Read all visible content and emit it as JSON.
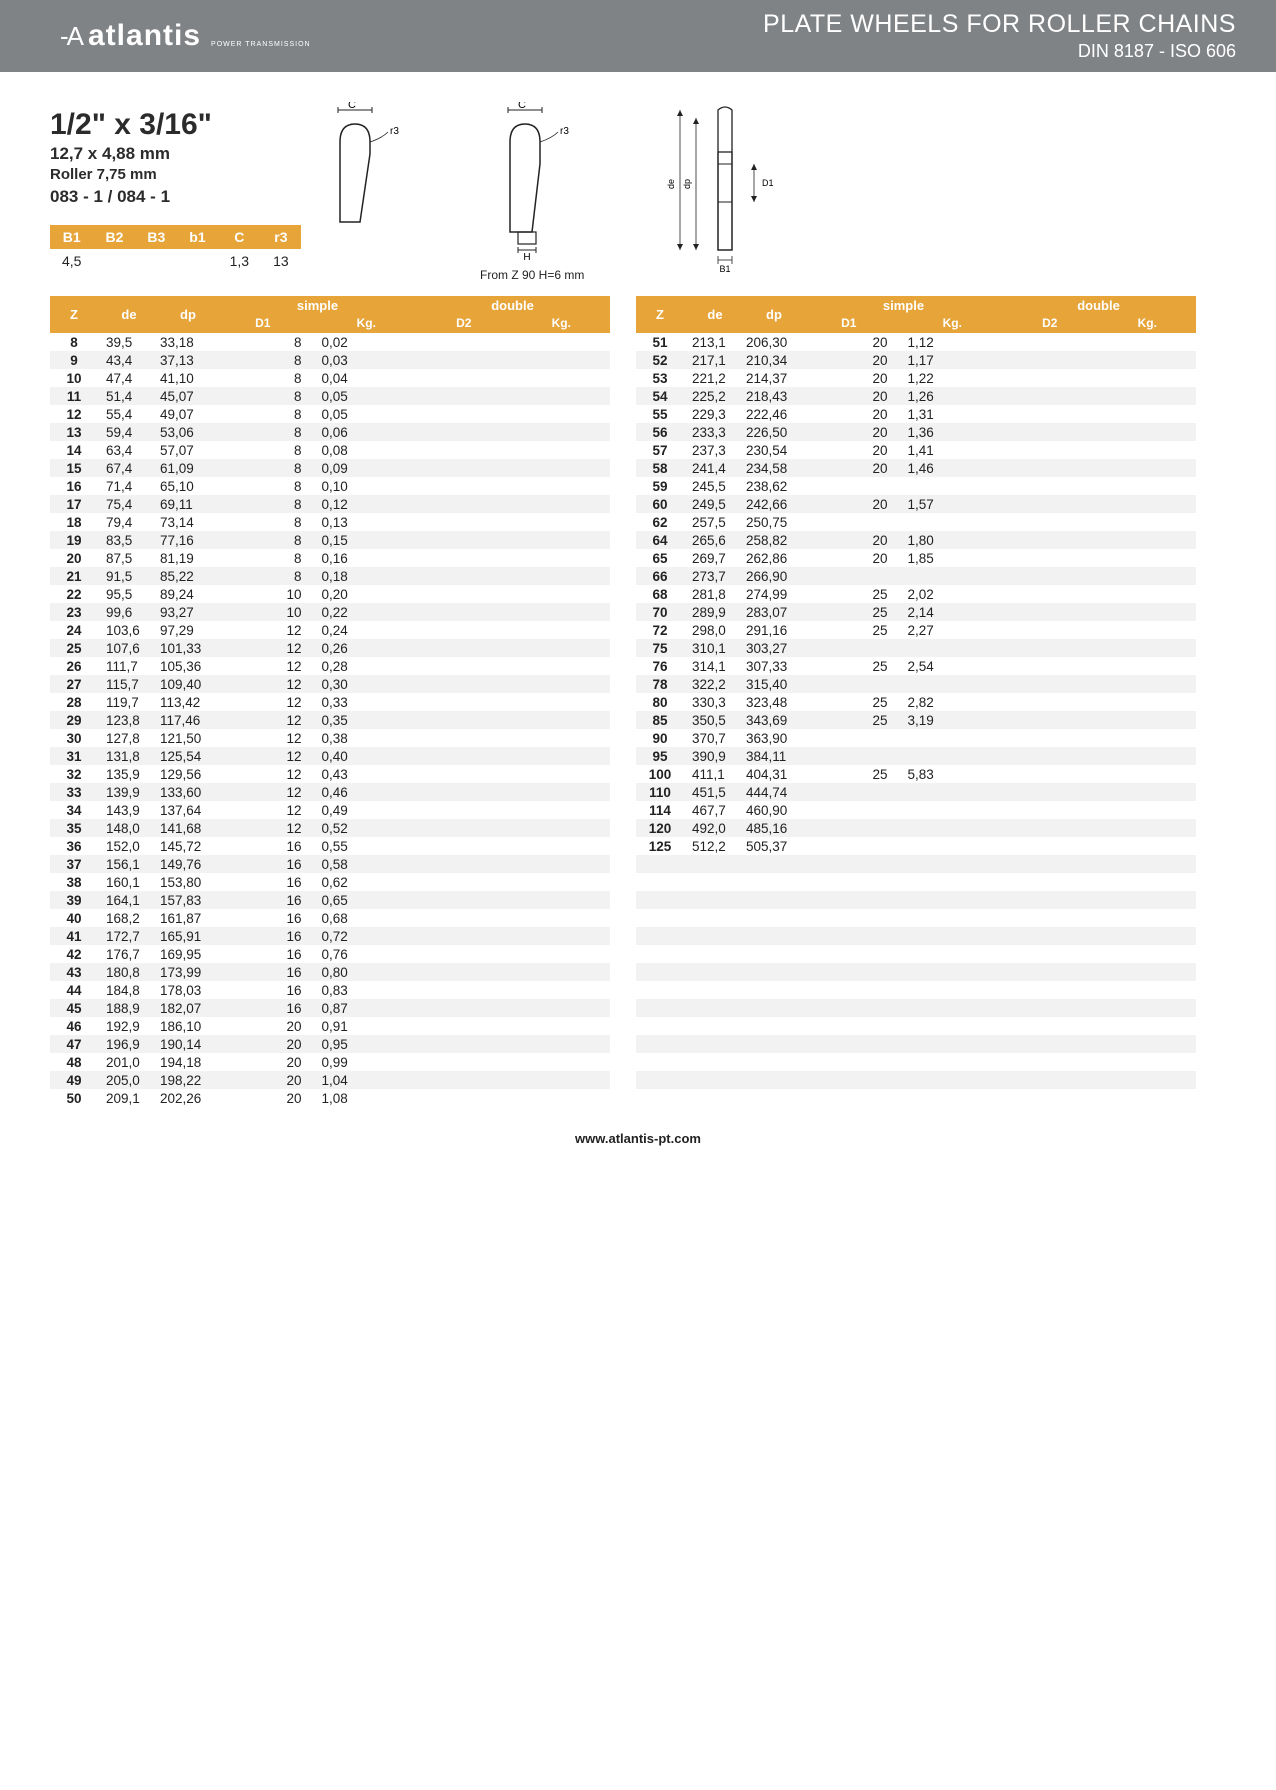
{
  "header": {
    "logo_symbol": "-A",
    "logo_text": "atlantis",
    "logo_sub": "POWER TRANSMISSION",
    "title": "PLATE WHEELS FOR ROLLER CHAINS",
    "subtitle": "DIN 8187 - ISO 606"
  },
  "spec": {
    "size": "1/2\" x 3/16\"",
    "mm": "12,7 x 4,88 mm",
    "roller": "Roller 7,75 mm",
    "code": "083 - 1 / 084 - 1"
  },
  "diagram_labels": {
    "c": "C",
    "r3": "r3",
    "h": "H",
    "de": "de",
    "dp": "dp",
    "d1": "D1",
    "b1": "B1"
  },
  "note": "From Z 90 H=6 mm",
  "params": {
    "headers": [
      "B1",
      "B2",
      "B3",
      "b1",
      "C",
      "r3"
    ],
    "values": [
      "4,5",
      "",
      "",
      "",
      "1,3",
      "13"
    ]
  },
  "table_headers": {
    "z": "Z",
    "de": "de",
    "dp": "dp",
    "simple": "simple",
    "double": "double",
    "d1": "D1",
    "kg": "Kg.",
    "d2": "D2",
    "kg2": "Kg."
  },
  "left": [
    {
      "z": "8",
      "de": "39,5",
      "dp": "33,18",
      "d1": "8",
      "kg": "0,02"
    },
    {
      "z": "9",
      "de": "43,4",
      "dp": "37,13",
      "d1": "8",
      "kg": "0,03"
    },
    {
      "z": "10",
      "de": "47,4",
      "dp": "41,10",
      "d1": "8",
      "kg": "0,04"
    },
    {
      "z": "11",
      "de": "51,4",
      "dp": "45,07",
      "d1": "8",
      "kg": "0,05"
    },
    {
      "z": "12",
      "de": "55,4",
      "dp": "49,07",
      "d1": "8",
      "kg": "0,05"
    },
    {
      "z": "13",
      "de": "59,4",
      "dp": "53,06",
      "d1": "8",
      "kg": "0,06"
    },
    {
      "z": "14",
      "de": "63,4",
      "dp": "57,07",
      "d1": "8",
      "kg": "0,08"
    },
    {
      "z": "15",
      "de": "67,4",
      "dp": "61,09",
      "d1": "8",
      "kg": "0,09"
    },
    {
      "z": "16",
      "de": "71,4",
      "dp": "65,10",
      "d1": "8",
      "kg": "0,10"
    },
    {
      "z": "17",
      "de": "75,4",
      "dp": "69,11",
      "d1": "8",
      "kg": "0,12"
    },
    {
      "z": "18",
      "de": "79,4",
      "dp": "73,14",
      "d1": "8",
      "kg": "0,13"
    },
    {
      "z": "19",
      "de": "83,5",
      "dp": "77,16",
      "d1": "8",
      "kg": "0,15"
    },
    {
      "z": "20",
      "de": "87,5",
      "dp": "81,19",
      "d1": "8",
      "kg": "0,16"
    },
    {
      "z": "21",
      "de": "91,5",
      "dp": "85,22",
      "d1": "8",
      "kg": "0,18"
    },
    {
      "z": "22",
      "de": "95,5",
      "dp": "89,24",
      "d1": "10",
      "kg": "0,20"
    },
    {
      "z": "23",
      "de": "99,6",
      "dp": "93,27",
      "d1": "10",
      "kg": "0,22"
    },
    {
      "z": "24",
      "de": "103,6",
      "dp": "97,29",
      "d1": "12",
      "kg": "0,24"
    },
    {
      "z": "25",
      "de": "107,6",
      "dp": "101,33",
      "d1": "12",
      "kg": "0,26"
    },
    {
      "z": "26",
      "de": "111,7",
      "dp": "105,36",
      "d1": "12",
      "kg": "0,28"
    },
    {
      "z": "27",
      "de": "115,7",
      "dp": "109,40",
      "d1": "12",
      "kg": "0,30"
    },
    {
      "z": "28",
      "de": "119,7",
      "dp": "113,42",
      "d1": "12",
      "kg": "0,33"
    },
    {
      "z": "29",
      "de": "123,8",
      "dp": "117,46",
      "d1": "12",
      "kg": "0,35"
    },
    {
      "z": "30",
      "de": "127,8",
      "dp": "121,50",
      "d1": "12",
      "kg": "0,38"
    },
    {
      "z": "31",
      "de": "131,8",
      "dp": "125,54",
      "d1": "12",
      "kg": "0,40"
    },
    {
      "z": "32",
      "de": "135,9",
      "dp": "129,56",
      "d1": "12",
      "kg": "0,43"
    },
    {
      "z": "33",
      "de": "139,9",
      "dp": "133,60",
      "d1": "12",
      "kg": "0,46"
    },
    {
      "z": "34",
      "de": "143,9",
      "dp": "137,64",
      "d1": "12",
      "kg": "0,49"
    },
    {
      "z": "35",
      "de": "148,0",
      "dp": "141,68",
      "d1": "12",
      "kg": "0,52"
    },
    {
      "z": "36",
      "de": "152,0",
      "dp": "145,72",
      "d1": "16",
      "kg": "0,55"
    },
    {
      "z": "37",
      "de": "156,1",
      "dp": "149,76",
      "d1": "16",
      "kg": "0,58"
    },
    {
      "z": "38",
      "de": "160,1",
      "dp": "153,80",
      "d1": "16",
      "kg": "0,62"
    },
    {
      "z": "39",
      "de": "164,1",
      "dp": "157,83",
      "d1": "16",
      "kg": "0,65"
    },
    {
      "z": "40",
      "de": "168,2",
      "dp": "161,87",
      "d1": "16",
      "kg": "0,68"
    },
    {
      "z": "41",
      "de": "172,7",
      "dp": "165,91",
      "d1": "16",
      "kg": "0,72"
    },
    {
      "z": "42",
      "de": "176,7",
      "dp": "169,95",
      "d1": "16",
      "kg": "0,76"
    },
    {
      "z": "43",
      "de": "180,8",
      "dp": "173,99",
      "d1": "16",
      "kg": "0,80"
    },
    {
      "z": "44",
      "de": "184,8",
      "dp": "178,03",
      "d1": "16",
      "kg": "0,83"
    },
    {
      "z": "45",
      "de": "188,9",
      "dp": "182,07",
      "d1": "16",
      "kg": "0,87"
    },
    {
      "z": "46",
      "de": "192,9",
      "dp": "186,10",
      "d1": "20",
      "kg": "0,91"
    },
    {
      "z": "47",
      "de": "196,9",
      "dp": "190,14",
      "d1": "20",
      "kg": "0,95"
    },
    {
      "z": "48",
      "de": "201,0",
      "dp": "194,18",
      "d1": "20",
      "kg": "0,99"
    },
    {
      "z": "49",
      "de": "205,0",
      "dp": "198,22",
      "d1": "20",
      "kg": "1,04"
    },
    {
      "z": "50",
      "de": "209,1",
      "dp": "202,26",
      "d1": "20",
      "kg": "1,08"
    }
  ],
  "right": [
    {
      "z": "51",
      "de": "213,1",
      "dp": "206,30",
      "d1": "20",
      "kg": "1,12"
    },
    {
      "z": "52",
      "de": "217,1",
      "dp": "210,34",
      "d1": "20",
      "kg": "1,17"
    },
    {
      "z": "53",
      "de": "221,2",
      "dp": "214,37",
      "d1": "20",
      "kg": "1,22"
    },
    {
      "z": "54",
      "de": "225,2",
      "dp": "218,43",
      "d1": "20",
      "kg": "1,26"
    },
    {
      "z": "55",
      "de": "229,3",
      "dp": "222,46",
      "d1": "20",
      "kg": "1,31"
    },
    {
      "z": "56",
      "de": "233,3",
      "dp": "226,50",
      "d1": "20",
      "kg": "1,36"
    },
    {
      "z": "57",
      "de": "237,3",
      "dp": "230,54",
      "d1": "20",
      "kg": "1,41"
    },
    {
      "z": "58",
      "de": "241,4",
      "dp": "234,58",
      "d1": "20",
      "kg": "1,46"
    },
    {
      "z": "59",
      "de": "245,5",
      "dp": "238,62",
      "d1": "",
      "kg": ""
    },
    {
      "z": "60",
      "de": "249,5",
      "dp": "242,66",
      "d1": "20",
      "kg": "1,57"
    },
    {
      "z": "62",
      "de": "257,5",
      "dp": "250,75",
      "d1": "",
      "kg": ""
    },
    {
      "z": "64",
      "de": "265,6",
      "dp": "258,82",
      "d1": "20",
      "kg": "1,80"
    },
    {
      "z": "65",
      "de": "269,7",
      "dp": "262,86",
      "d1": "20",
      "kg": "1,85"
    },
    {
      "z": "66",
      "de": "273,7",
      "dp": "266,90",
      "d1": "",
      "kg": ""
    },
    {
      "z": "68",
      "de": "281,8",
      "dp": "274,99",
      "d1": "25",
      "kg": "2,02"
    },
    {
      "z": "70",
      "de": "289,9",
      "dp": "283,07",
      "d1": "25",
      "kg": "2,14"
    },
    {
      "z": "72",
      "de": "298,0",
      "dp": "291,16",
      "d1": "25",
      "kg": "2,27"
    },
    {
      "z": "75",
      "de": "310,1",
      "dp": "303,27",
      "d1": "",
      "kg": ""
    },
    {
      "z": "76",
      "de": "314,1",
      "dp": "307,33",
      "d1": "25",
      "kg": "2,54"
    },
    {
      "z": "78",
      "de": "322,2",
      "dp": "315,40",
      "d1": "",
      "kg": ""
    },
    {
      "z": "80",
      "de": "330,3",
      "dp": "323,48",
      "d1": "25",
      "kg": "2,82"
    },
    {
      "z": "85",
      "de": "350,5",
      "dp": "343,69",
      "d1": "25",
      "kg": "3,19"
    },
    {
      "z": "90",
      "de": "370,7",
      "dp": "363,90",
      "d1": "",
      "kg": ""
    },
    {
      "z": "95",
      "de": "390,9",
      "dp": "384,11",
      "d1": "",
      "kg": ""
    },
    {
      "z": "100",
      "de": "411,1",
      "dp": "404,31",
      "d1": "25",
      "kg": "5,83"
    },
    {
      "z": "110",
      "de": "451,5",
      "dp": "444,74",
      "d1": "",
      "kg": ""
    },
    {
      "z": "114",
      "de": "467,7",
      "dp": "460,90",
      "d1": "",
      "kg": ""
    },
    {
      "z": "120",
      "de": "492,0",
      "dp": "485,16",
      "d1": "",
      "kg": ""
    },
    {
      "z": "125",
      "de": "512,2",
      "dp": "505,37",
      "d1": "",
      "kg": ""
    }
  ],
  "right_pad": 14,
  "footer": "www.atlantis-pt.com",
  "colors": {
    "header_bg": "#808386",
    "accent": "#e6a439",
    "row_alt": "#f2f2f2"
  }
}
